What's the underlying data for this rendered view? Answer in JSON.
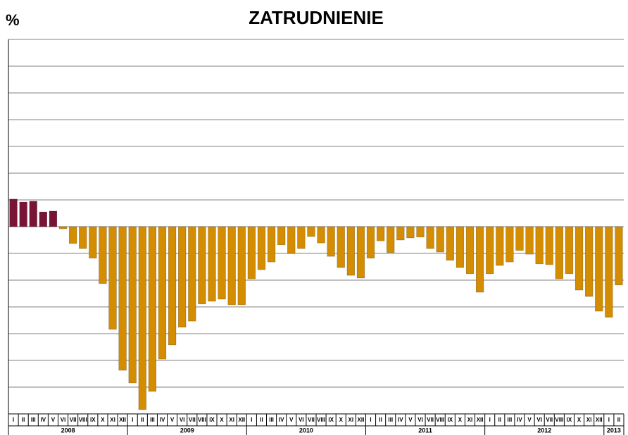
{
  "chart_data": {
    "type": "bar",
    "title": "ZATRUDNIENIE",
    "y_label": "%",
    "categories": [
      "I",
      "II",
      "III",
      "IV",
      "V",
      "VI",
      "VII",
      "VIII",
      "IX",
      "X",
      "XI",
      "XII",
      "I",
      "II",
      "III",
      "IV",
      "V",
      "VI",
      "VII",
      "VIII",
      "IX",
      "X",
      "XI",
      "XII",
      "I",
      "II",
      "III",
      "IV",
      "V",
      "VI",
      "VII",
      "VIII",
      "IX",
      "X",
      "XI",
      "XII",
      "I",
      "II",
      "III",
      "IV",
      "V",
      "VI",
      "VII",
      "VIII",
      "IX",
      "X",
      "XI",
      "XII",
      "I",
      "II",
      "III",
      "IV",
      "V",
      "VI",
      "VII",
      "VIII",
      "IX",
      "X",
      "XI",
      "XII",
      "I",
      "II"
    ],
    "x_groups": [
      "2008",
      "2009",
      "2010",
      "2011",
      "2012",
      "2013"
    ],
    "values": [
      1.03,
      0.92,
      0.95,
      0.55,
      0.58,
      -0.08,
      -0.63,
      -0.82,
      -1.18,
      -2.13,
      -3.84,
      -5.37,
      -5.84,
      -6.84,
      -6.16,
      -4.95,
      -4.42,
      -3.76,
      -3.53,
      -2.89,
      -2.79,
      -2.71,
      -2.92,
      -2.92,
      -1.95,
      -1.61,
      -1.32,
      -0.68,
      -1.0,
      -0.82,
      -0.37,
      -0.61,
      -1.11,
      -1.53,
      -1.82,
      -1.92,
      -1.18,
      -0.53,
      -0.97,
      -0.5,
      -0.42,
      -0.39,
      -0.82,
      -0.95,
      -1.26,
      -1.53,
      -1.76,
      -2.45,
      -1.76,
      -1.45,
      -1.32,
      -0.89,
      -1.03,
      -1.39,
      -1.42,
      -1.95,
      -1.76,
      -2.37,
      -2.61,
      -3.16,
      -3.39,
      -2.18
    ],
    "positive_color": "#7a1436",
    "negative_color": "#d48c00",
    "ylim": [
      -7,
      7
    ],
    "yticks": [
      -7,
      -6,
      -5,
      -4,
      -3,
      -2,
      -1,
      0,
      1,
      2,
      3,
      4,
      5,
      6,
      7
    ],
    "grid": true
  }
}
